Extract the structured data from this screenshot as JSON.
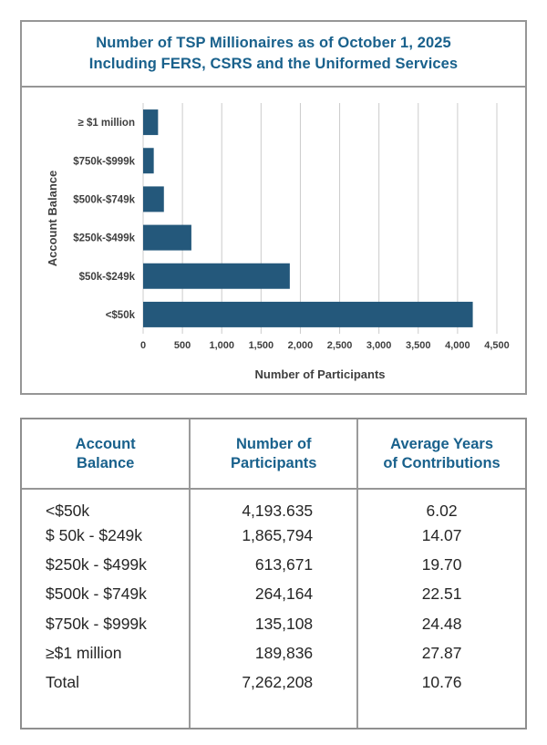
{
  "colors": {
    "accent_blue": "#19618C",
    "bar": "#24587B",
    "grid": "#CCCCCC",
    "border_gray": "#969696",
    "chart_text": "#3F3F3F",
    "body_text": "#262626"
  },
  "title_box": {
    "line1": "Number of TSP Millionaires as of October 1, 2025",
    "line2": "Including FERS, CSRS and the Uniformed Services"
  },
  "chart_data": {
    "type": "bar",
    "orientation": "horizontal",
    "categories": [
      "≥ $1 million",
      "$750k-$999k",
      "$500k-$749k",
      "$250k-$499k",
      "$50k-$249k",
      "<$50k"
    ],
    "values": [
      189.836,
      135.108,
      264.164,
      613.671,
      1865.794,
      4193.635
    ],
    "values_unit": "thousands of participants",
    "xlabel": "Number of Participants",
    "ylabel": "Account Balance",
    "xlim": [
      0,
      4500
    ],
    "xticks": [
      0,
      500,
      1000,
      1500,
      2000,
      2500,
      3000,
      3500,
      4000,
      4500
    ],
    "xtick_labels": [
      "0",
      "500",
      "1,000",
      "1,500",
      "2,000",
      "2,500",
      "3,000",
      "3,500",
      "4,000",
      "4,500"
    ],
    "grid": "vertical",
    "legend": "none"
  },
  "table": {
    "headers": [
      {
        "line1": "Account",
        "line2": "Balance"
      },
      {
        "line1": "Number of",
        "line2": "Participants"
      },
      {
        "line1": "Average Years",
        "line2": "of Contributions"
      }
    ],
    "rows": [
      {
        "balance": "<$50k",
        "participants": "4,193.635",
        "avg_years": "6.02"
      },
      {
        "balance": "$ 50k - $249k",
        "participants": "1,865,794",
        "avg_years": "14.07"
      },
      {
        "balance": "$250k - $499k",
        "participants": "613,671",
        "avg_years": "19.70"
      },
      {
        "balance": "$500k - $749k",
        "participants": "264,164",
        "avg_years": "22.51"
      },
      {
        "balance": "$750k - $999k",
        "participants": "135,108",
        "avg_years": "24.48"
      },
      {
        "balance": "≥$1 million",
        "participants": "189,836",
        "avg_years": "27.87"
      },
      {
        "balance": "Total",
        "participants": "7,262,208",
        "avg_years": "10.76"
      }
    ]
  }
}
